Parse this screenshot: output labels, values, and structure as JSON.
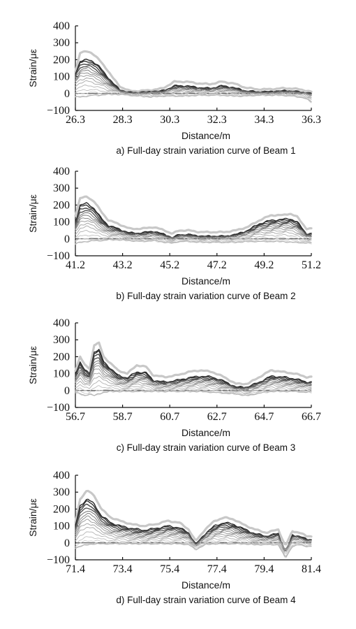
{
  "chart_data": [
    {
      "type": "line",
      "caption": "a) Full-day strain variation curve of Beam 1",
      "xlabel": "Distance/m",
      "ylabel": "Strain/με",
      "xlim": [
        26.3,
        36.3
      ],
      "ylim": [
        -100,
        400
      ],
      "xticks": [
        "26.3",
        "28.3",
        "30.3",
        "32.3",
        "34.3",
        "36.3"
      ],
      "yticks": [
        "−100",
        "0",
        "100",
        "200",
        "300",
        "400"
      ],
      "series": [
        {
          "role": "envelope-max",
          "color": "#c8c8c8",
          "x": [
            26.3,
            26.5,
            26.8,
            27.0,
            27.3,
            27.6,
            27.9,
            28.2,
            28.6,
            29.0,
            29.5,
            30.0,
            30.5,
            31.0,
            31.5,
            32.0,
            32.5,
            33.0,
            33.5,
            34.0,
            34.5,
            35.0,
            35.5,
            36.0,
            36.3
          ],
          "y": [
            130,
            240,
            250,
            240,
            200,
            150,
            90,
            40,
            15,
            15,
            20,
            30,
            70,
            70,
            60,
            55,
            70,
            60,
            35,
            25,
            25,
            30,
            30,
            20,
            10
          ]
        },
        {
          "role": "upper-band",
          "color": "#222222",
          "x": [
            26.3,
            26.5,
            26.8,
            27.0,
            27.3,
            27.6,
            27.9,
            28.2,
            28.6,
            29.0,
            29.5,
            30.0,
            30.5,
            31.0,
            31.5,
            32.0,
            32.5,
            33.0,
            33.5,
            34.0,
            34.5,
            35.0,
            35.5,
            36.0,
            36.3
          ],
          "y": [
            120,
            190,
            200,
            195,
            160,
            110,
            60,
            20,
            5,
            5,
            10,
            15,
            45,
            45,
            35,
            30,
            45,
            35,
            15,
            10,
            10,
            15,
            15,
            5,
            0
          ]
        },
        {
          "role": "mid-band",
          "color": "#777777",
          "x": [
            26.3,
            26.5,
            26.8,
            27.0,
            27.3,
            27.6,
            27.9,
            28.2,
            28.6,
            29.0,
            29.5,
            30.0,
            30.5,
            31.0,
            31.5,
            32.0,
            32.5,
            33.0,
            33.5,
            34.0,
            34.5,
            35.0,
            35.5,
            36.0,
            36.3
          ],
          "y": [
            70,
            100,
            110,
            100,
            80,
            55,
            30,
            10,
            0,
            0,
            5,
            5,
            20,
            20,
            15,
            15,
            20,
            15,
            5,
            0,
            0,
            5,
            5,
            0,
            -10
          ]
        },
        {
          "role": "envelope-min",
          "color": "#b4b4b4",
          "x": [
            26.3,
            26.5,
            26.8,
            27.0,
            27.3,
            27.6,
            27.9,
            28.2,
            28.6,
            29.0,
            29.5,
            30.0,
            30.5,
            31.0,
            31.5,
            32.0,
            32.5,
            33.0,
            33.5,
            34.0,
            34.5,
            35.0,
            35.5,
            36.0,
            36.3
          ],
          "y": [
            -20,
            -20,
            -15,
            -10,
            -10,
            -5,
            -5,
            -5,
            -10,
            -15,
            -20,
            -15,
            -15,
            -15,
            -10,
            -10,
            -10,
            -15,
            -15,
            -10,
            -10,
            -10,
            -15,
            -25,
            -50
          ]
        }
      ]
    },
    {
      "type": "line",
      "caption": "b) Full-day strain variation curve of Beam 2",
      "xlabel": "Distance/m",
      "ylabel": "Strain/με",
      "xlim": [
        41.2,
        51.2
      ],
      "ylim": [
        -100,
        400
      ],
      "xticks": [
        "41.2",
        "43.2",
        "45.2",
        "47.2",
        "49.2",
        "51.2"
      ],
      "yticks": [
        "−100",
        "0",
        "100",
        "200",
        "300",
        "400"
      ],
      "series": [
        {
          "role": "envelope-max",
          "color": "#c8c8c8",
          "x": [
            41.2,
            41.4,
            41.7,
            42.0,
            42.3,
            42.6,
            43.0,
            43.5,
            44.0,
            44.5,
            45.0,
            45.3,
            45.6,
            46.0,
            46.5,
            47.0,
            47.5,
            48.0,
            48.5,
            49.0,
            49.5,
            50.0,
            50.3,
            50.6,
            51.0
          ],
          "y": [
            140,
            240,
            250,
            220,
            160,
            110,
            90,
            60,
            60,
            70,
            50,
            30,
            50,
            50,
            40,
            40,
            40,
            50,
            70,
            110,
            140,
            140,
            150,
            130,
            60
          ]
        },
        {
          "role": "upper-band",
          "color": "#222222",
          "x": [
            41.2,
            41.4,
            41.7,
            42.0,
            42.3,
            42.6,
            43.0,
            43.5,
            44.0,
            44.5,
            45.0,
            45.3,
            45.6,
            46.0,
            46.5,
            47.0,
            47.5,
            48.0,
            48.5,
            49.0,
            49.5,
            50.0,
            50.3,
            50.6,
            51.0
          ],
          "y": [
            100,
            200,
            210,
            180,
            120,
            80,
            60,
            35,
            35,
            45,
            25,
            5,
            25,
            25,
            15,
            15,
            15,
            25,
            50,
            90,
            110,
            115,
            120,
            100,
            30
          ]
        },
        {
          "role": "mid-band",
          "color": "#777777",
          "x": [
            41.2,
            41.4,
            41.7,
            42.0,
            42.3,
            42.6,
            43.0,
            43.5,
            44.0,
            44.5,
            45.0,
            45.3,
            45.6,
            46.0,
            46.5,
            47.0,
            47.5,
            48.0,
            48.5,
            49.0,
            49.5,
            50.0,
            50.3,
            50.6,
            51.0
          ],
          "y": [
            50,
            100,
            110,
            90,
            60,
            40,
            30,
            15,
            15,
            20,
            10,
            0,
            10,
            10,
            5,
            5,
            5,
            10,
            25,
            45,
            55,
            60,
            60,
            50,
            10
          ]
        },
        {
          "role": "envelope-min",
          "color": "#b4b4b4",
          "x": [
            41.2,
            41.4,
            41.7,
            42.0,
            42.3,
            42.6,
            43.0,
            43.5,
            44.0,
            44.5,
            45.0,
            45.3,
            45.6,
            46.0,
            46.5,
            47.0,
            47.5,
            48.0,
            48.5,
            49.0,
            49.5,
            50.0,
            50.3,
            50.6,
            51.0
          ],
          "y": [
            -30,
            -20,
            -15,
            -10,
            -10,
            -5,
            -5,
            -10,
            -15,
            -10,
            -20,
            -25,
            -15,
            -15,
            -20,
            -20,
            -20,
            -20,
            -15,
            -15,
            -15,
            -15,
            -20,
            -20,
            -25
          ]
        }
      ]
    },
    {
      "type": "line",
      "caption": "c) Full-day strain variation curve of Beam 3",
      "xlabel": "Distance/m",
      "ylabel": "Strain/με",
      "xlim": [
        56.7,
        66.7
      ],
      "ylim": [
        -100,
        400
      ],
      "xticks": [
        "56.7",
        "58.7",
        "60.7",
        "62.7",
        "64.7",
        "66.7"
      ],
      "yticks": [
        "−100",
        "0",
        "100",
        "200",
        "300",
        "400"
      ],
      "series": [
        {
          "role": "envelope-max",
          "color": "#c8c8c8",
          "x": [
            56.7,
            56.9,
            57.1,
            57.3,
            57.5,
            57.7,
            57.9,
            58.2,
            58.5,
            58.9,
            59.3,
            59.7,
            60.0,
            60.5,
            61.0,
            61.5,
            62.0,
            62.5,
            63.0,
            63.5,
            64.0,
            64.5,
            65.0,
            65.5,
            66.0,
            66.5
          ],
          "y": [
            120,
            200,
            150,
            130,
            270,
            280,
            200,
            160,
            120,
            100,
            150,
            140,
            90,
            80,
            90,
            110,
            120,
            110,
            80,
            40,
            40,
            80,
            120,
            110,
            100,
            80
          ]
        },
        {
          "role": "upper-band",
          "color": "#222222",
          "x": [
            56.7,
            56.9,
            57.1,
            57.3,
            57.5,
            57.7,
            57.9,
            58.2,
            58.5,
            58.9,
            59.3,
            59.7,
            60.0,
            60.5,
            61.0,
            61.5,
            62.0,
            62.5,
            63.0,
            63.5,
            64.0,
            64.5,
            65.0,
            65.5,
            66.0,
            66.5
          ],
          "y": [
            100,
            170,
            120,
            100,
            230,
            240,
            170,
            130,
            90,
            75,
            110,
            105,
            60,
            50,
            60,
            75,
            85,
            80,
            55,
            20,
            20,
            50,
            85,
            80,
            70,
            50
          ]
        },
        {
          "role": "mid-band",
          "color": "#777777",
          "x": [
            56.7,
            56.9,
            57.1,
            57.3,
            57.5,
            57.7,
            57.9,
            58.2,
            58.5,
            58.9,
            59.3,
            59.7,
            60.0,
            60.5,
            61.0,
            61.5,
            62.0,
            62.5,
            63.0,
            63.5,
            64.0,
            64.5,
            65.0,
            65.5,
            66.0,
            66.5
          ],
          "y": [
            50,
            90,
            60,
            50,
            120,
            130,
            90,
            70,
            45,
            35,
            55,
            55,
            30,
            25,
            30,
            40,
            45,
            40,
            25,
            5,
            5,
            25,
            45,
            40,
            35,
            25
          ]
        },
        {
          "role": "envelope-min",
          "color": "#b4b4b4",
          "x": [
            56.7,
            56.9,
            57.1,
            57.3,
            57.5,
            57.7,
            57.9,
            58.2,
            58.5,
            58.9,
            59.3,
            59.7,
            60.0,
            60.5,
            61.0,
            61.5,
            62.0,
            62.5,
            63.0,
            63.5,
            64.0,
            64.5,
            65.0,
            65.5,
            66.0,
            66.5
          ],
          "y": [
            -10,
            -20,
            -30,
            -20,
            -30,
            -20,
            -10,
            -5,
            -5,
            -5,
            -5,
            -5,
            -5,
            -5,
            -5,
            -5,
            -5,
            -10,
            -15,
            -20,
            -30,
            -15,
            -5,
            -5,
            -5,
            -10
          ]
        }
      ]
    },
    {
      "type": "line",
      "caption": "d) Full-day strain variation curve of Beam 4",
      "xlabel": "Distance/m",
      "ylabel": "Strain/με",
      "xlim": [
        71.4,
        81.4
      ],
      "ylim": [
        -100,
        400
      ],
      "xticks": [
        "71.4",
        "73.4",
        "75.4",
        "77.4",
        "79.4",
        "81.4"
      ],
      "yticks": [
        "−100",
        "0",
        "100",
        "200",
        "300",
        "400"
      ],
      "series": [
        {
          "role": "envelope-max",
          "color": "#c8c8c8",
          "x": [
            71.4,
            71.6,
            71.9,
            72.2,
            72.5,
            72.9,
            73.3,
            73.8,
            74.3,
            74.8,
            75.3,
            75.8,
            76.2,
            76.5,
            76.9,
            77.3,
            77.7,
            78.1,
            78.5,
            79.0,
            79.5,
            80.0,
            80.3,
            80.6,
            80.9,
            81.2
          ],
          "y": [
            120,
            260,
            310,
            280,
            200,
            150,
            130,
            110,
            100,
            110,
            130,
            120,
            80,
            10,
            80,
            130,
            150,
            140,
            110,
            80,
            60,
            80,
            -20,
            70,
            60,
            40
          ]
        },
        {
          "role": "upper-band",
          "color": "#222222",
          "x": [
            71.4,
            71.6,
            71.9,
            72.2,
            72.5,
            72.9,
            73.3,
            73.8,
            74.3,
            74.8,
            75.3,
            75.8,
            76.2,
            76.5,
            76.9,
            77.3,
            77.7,
            78.1,
            78.5,
            79.0,
            79.5,
            80.0,
            80.3,
            80.6,
            80.9,
            81.2
          ],
          "y": [
            100,
            220,
            260,
            230,
            160,
            120,
            100,
            85,
            75,
            85,
            100,
            90,
            60,
            -10,
            55,
            100,
            120,
            110,
            85,
            55,
            40,
            55,
            -60,
            45,
            40,
            20
          ]
        },
        {
          "role": "mid-band",
          "color": "#777777",
          "x": [
            71.4,
            71.6,
            71.9,
            72.2,
            72.5,
            72.9,
            73.3,
            73.8,
            74.3,
            74.8,
            75.3,
            75.8,
            76.2,
            76.5,
            76.9,
            77.3,
            77.7,
            78.1,
            78.5,
            79.0,
            79.5,
            80.0,
            80.3,
            80.6,
            80.9,
            81.2
          ],
          "y": [
            50,
            110,
            140,
            120,
            85,
            60,
            50,
            40,
            35,
            40,
            50,
            45,
            30,
            -15,
            25,
            50,
            60,
            55,
            40,
            25,
            15,
            25,
            -40,
            20,
            20,
            10
          ]
        },
        {
          "role": "envelope-min",
          "color": "#b4b4b4",
          "x": [
            71.4,
            71.6,
            71.9,
            72.2,
            72.5,
            72.9,
            73.3,
            73.8,
            74.3,
            74.8,
            75.3,
            75.8,
            76.2,
            76.5,
            76.9,
            77.3,
            77.7,
            78.1,
            78.5,
            79.0,
            79.5,
            80.0,
            80.3,
            80.6,
            80.9,
            81.2
          ],
          "y": [
            -30,
            -20,
            -10,
            -5,
            -5,
            -5,
            -5,
            -5,
            -5,
            -5,
            -5,
            -5,
            -10,
            -40,
            -10,
            -5,
            -5,
            -5,
            -5,
            -10,
            -10,
            -10,
            -90,
            -20,
            -10,
            -20
          ]
        }
      ]
    }
  ]
}
